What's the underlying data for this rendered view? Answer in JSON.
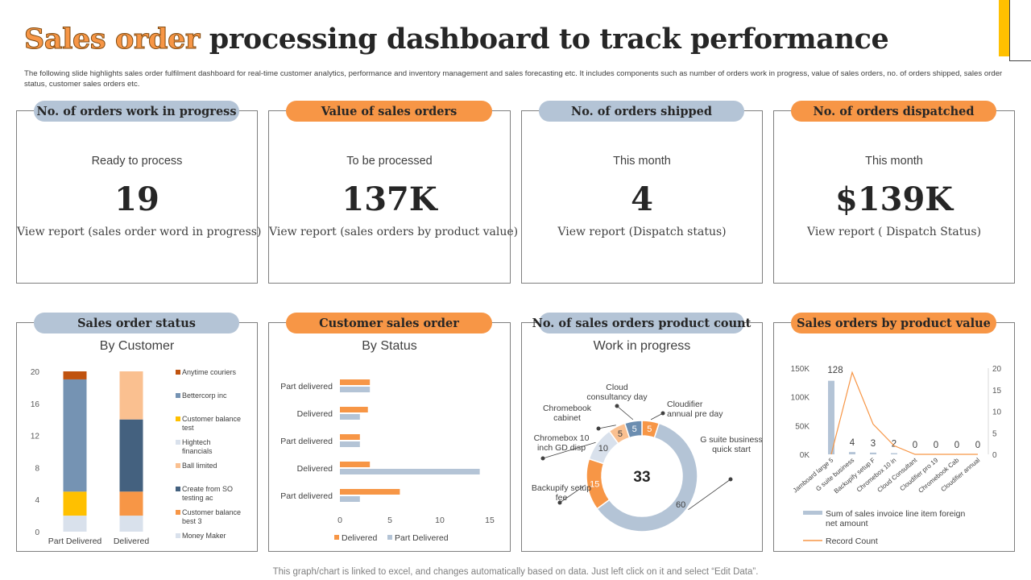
{
  "title": {
    "highlight": "Sales order",
    "rest": "processing dashboard to track performance"
  },
  "subtitle": "The following slide highlights sales order fulfilment dashboard for real-time customer analytics, performance and inventory management and sales forecasting etc. It includes components such as number of orders work in progress, value of sales orders, no. of orders shipped, sales order status, customer sales orders etc.",
  "kpis": [
    {
      "header": "No. of orders work in progress",
      "label": "Ready to process",
      "value": "19",
      "link": "View report (sales order word in progress)"
    },
    {
      "header": "Value of sales orders",
      "label": "To be processed",
      "value": "137K",
      "link": "View report (sales orders by product value)"
    },
    {
      "header": "No. of orders shipped",
      "label": "This month",
      "value": "4",
      "link": "View report (Dispatch status)"
    },
    {
      "header": "No. of orders dispatched",
      "label": "This month",
      "value": "$139K",
      "link": "View report ( Dispatch Status)"
    }
  ],
  "chart_headers": [
    "Sales order status",
    "Customer sales order",
    "No. of sales orders product count",
    "Sales orders by product value"
  ],
  "footer": "This graph/chart is linked to excel, and changes automatically based on data. Just left click on it and select “Edit Data”.",
  "colors": {
    "accent": "#F79646",
    "pill_blue": "#B4C4D6",
    "yellow": "#FFC000"
  },
  "chart_data": [
    {
      "type": "bar",
      "stacked": true,
      "title": "By Customer",
      "categories": [
        "Part Delivered",
        "Delivered"
      ],
      "yticks": [
        0,
        4,
        8,
        12,
        16,
        20
      ],
      "ylim": [
        0,
        20
      ],
      "series": [
        {
          "name": "Money Maker",
          "color": "#D9E1EC",
          "values": [
            2,
            2
          ]
        },
        {
          "name": "Customer balance best 3",
          "color": "#F79646",
          "values": [
            0,
            3
          ]
        },
        {
          "name": "Create from SO testing ac",
          "color": "#44617F",
          "values": [
            0,
            9
          ]
        },
        {
          "name": "Ball limited",
          "color": "#FAC090",
          "values": [
            0,
            6
          ]
        },
        {
          "name": "Hightech financials",
          "color": "#D9E1EC",
          "values": [
            0,
            0
          ]
        },
        {
          "name": "Customer balance test",
          "color": "#FFC000",
          "values": [
            3,
            0
          ]
        },
        {
          "name": "Bettercorp inc",
          "color": "#7593B3",
          "values": [
            14,
            0
          ]
        },
        {
          "name": "Anytime couriers",
          "color": "#C0530F",
          "values": [
            1,
            0
          ]
        }
      ],
      "legend_order": [
        "Anytime couriers",
        "Bettercorp inc",
        "Customer balance test",
        "Hightech financials",
        "Ball limited",
        "Create from SO testing ac",
        "Customer balance best 3",
        "Money Maker"
      ]
    },
    {
      "type": "bar",
      "orientation": "horizontal",
      "title": "By Status",
      "categories": [
        "Part delivered",
        "Delivered",
        "Part delivered",
        "Delivered",
        "Part delivered"
      ],
      "xticks": [
        0,
        5,
        10,
        15
      ],
      "xlim": [
        0,
        15
      ],
      "series": [
        {
          "name": "Delivered",
          "color": "#F79646",
          "values": [
            3,
            2.8,
            2,
            3,
            6
          ]
        },
        {
          "name": "Part Delivered",
          "color": "#B4C4D6",
          "values": [
            3,
            2,
            2,
            14,
            2
          ]
        }
      ]
    },
    {
      "type": "pie",
      "donut": true,
      "title": "Work in progress",
      "center_label": "33",
      "slices": [
        {
          "label": "Cloudifier annual pre day",
          "value": 5,
          "color": "#F79646"
        },
        {
          "label": "G suite business quick start",
          "value": 60,
          "color": "#B4C4D6"
        },
        {
          "label": "Backupify setup fee",
          "value": 15,
          "color": "#F79646"
        },
        {
          "label": "Chromebox 10 inch GD disp",
          "value": 10,
          "color": "#D9E1EC"
        },
        {
          "label": "Chromebook cabinet",
          "value": 5,
          "color": "#FAC090"
        },
        {
          "label": "Cloud consultancy day",
          "value": 5,
          "color": "#6B8DB0"
        }
      ]
    },
    {
      "type": "bar",
      "combo": "bar+line",
      "categories": [
        "Jamboard large 5",
        "G suite business",
        "Backupify setup F",
        "Chromebox 10 in",
        "Cloud Consultant",
        "Cloudifier pro 19",
        "Chromebook Cab",
        "Cloudifier annual"
      ],
      "series": [
        {
          "name": "Sum of sales invoice line item foreign net amount",
          "axis": "left",
          "color": "#B4C4D6",
          "values": [
            128,
            4,
            3,
            2,
            0,
            0,
            0,
            0
          ],
          "unit": "K",
          "data_labels": [
            "128",
            "4",
            "3",
            "2",
            "0",
            "0",
            "0",
            "0"
          ]
        },
        {
          "name": "Record Count",
          "axis": "right",
          "color": "#F79646",
          "values": [
            0,
            19,
            7,
            2,
            0,
            0,
            0,
            0
          ]
        }
      ],
      "yticks_left": [
        "0K",
        "50K",
        "100K",
        "150K"
      ],
      "yticks_right": [
        "0",
        "5",
        "10",
        "15",
        "20"
      ],
      "ylim_left": [
        0,
        150
      ],
      "ylim_right": [
        0,
        20
      ]
    }
  ]
}
